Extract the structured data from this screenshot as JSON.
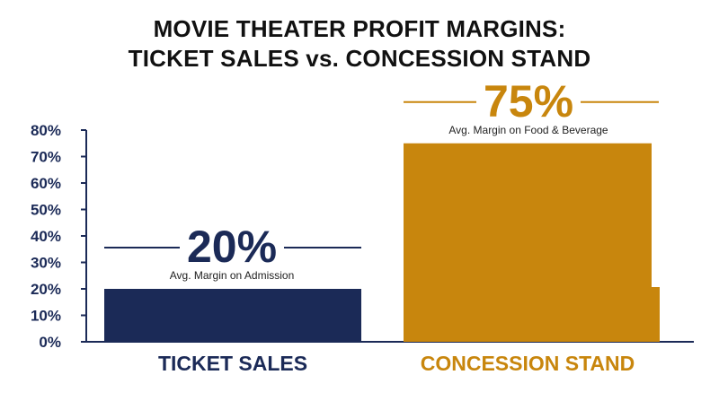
{
  "chart_data": {
    "type": "bar",
    "title_lines": [
      "MOVIE THEATER PROFIT MARGINS:",
      "TICKET SALES vs. CONCESSION STAND"
    ],
    "categories": [
      "TICKET SALES",
      "CONCESSION STAND"
    ],
    "values": [
      20,
      75
    ],
    "value_labels": [
      "20%",
      "75%"
    ],
    "captions": [
      "Avg. Margin on Admission",
      "Avg. Margin on Food & Beverage"
    ],
    "colors": [
      "#1b2a57",
      "#c8860d"
    ],
    "yticks": [
      0,
      10,
      20,
      30,
      40,
      50,
      60,
      70,
      80
    ],
    "ytick_labels": [
      "0%",
      "10%",
      "20%",
      "30%",
      "40%",
      "50%",
      "60%",
      "70%",
      "80%"
    ],
    "ylim": [
      0,
      80
    ],
    "grid": false,
    "legend": "none"
  }
}
